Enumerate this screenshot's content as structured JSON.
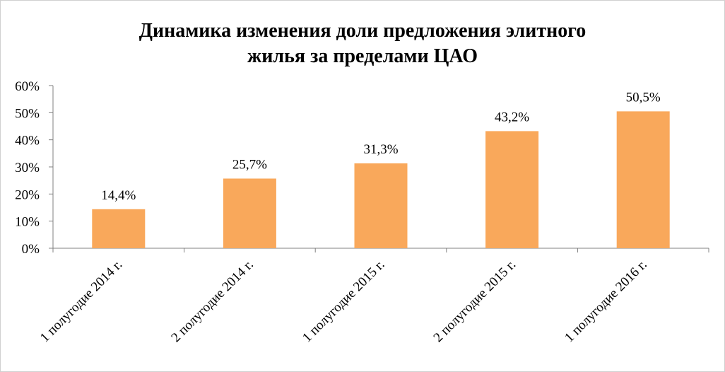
{
  "chart_data": {
    "type": "bar",
    "title_lines": [
      "Динамика изменения доли предложения элитного",
      "жилья за пределами ЦАО"
    ],
    "categories": [
      "1 полугодие 2014 г.",
      "2 полугодие 2014 г.",
      "1 полугодие 2015 г.",
      "2 полугодие 2015 г.",
      "1 полугодие 2016 г."
    ],
    "values": [
      14.4,
      25.7,
      31.3,
      43.2,
      50.5
    ],
    "data_labels": [
      "14,4%",
      "25,7%",
      "31,3%",
      "43,2%",
      "50,5%"
    ],
    "y_ticks": [
      "0%",
      "10%",
      "20%",
      "30%",
      "40%",
      "50%",
      "60%"
    ],
    "ylim": [
      0,
      60
    ],
    "xlabel": "",
    "ylabel": "",
    "grid": false,
    "legend": "none",
    "bar_color": "#F9A85B"
  }
}
